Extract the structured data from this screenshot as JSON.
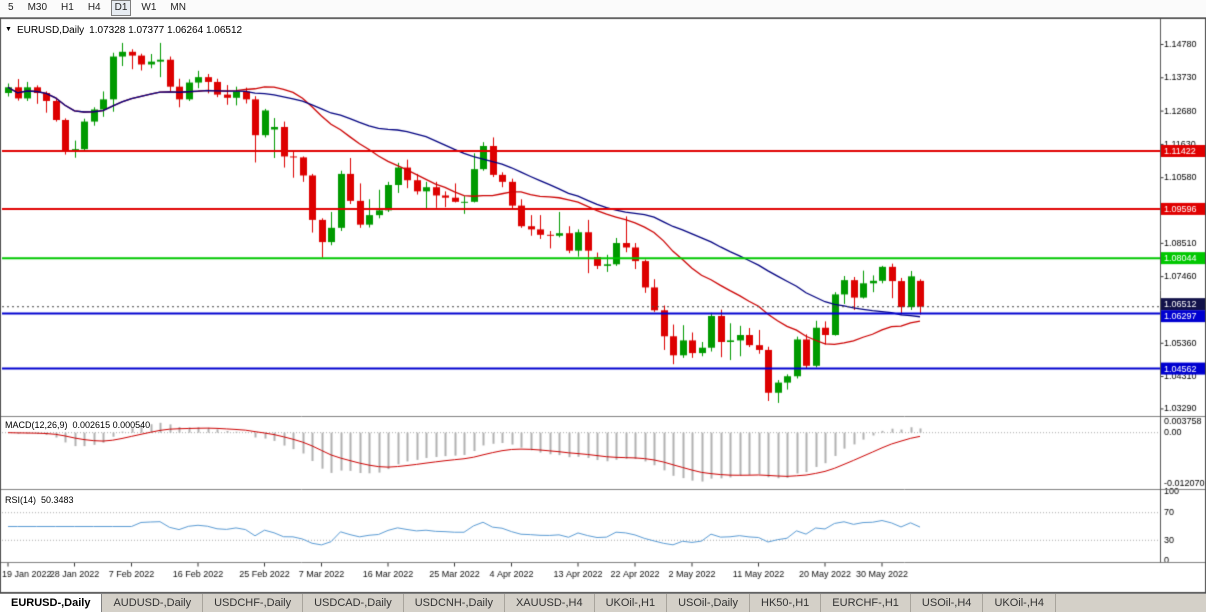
{
  "toolbar": {
    "timeframes": [
      {
        "label": "5",
        "active": false
      },
      {
        "label": "M30",
        "active": false
      },
      {
        "label": "H1",
        "active": false
      },
      {
        "label": "H4",
        "active": false
      },
      {
        "label": "D1",
        "active": true
      },
      {
        "label": "W1",
        "active": false
      },
      {
        "label": "MN",
        "active": false
      }
    ]
  },
  "chart": {
    "collapse_icon": "▼",
    "symbol_period": "EURUSD,Daily",
    "ohlc": "1.07328 1.07377 1.06264 1.06512"
  },
  "indicators": {
    "macd": {
      "label": "MACD(12,26,9)",
      "values": "0.002615 0.000540",
      "axis_labels": [
        "0.003758",
        "0.00",
        "-0.012070"
      ]
    },
    "rsi": {
      "label": "RSI(14)",
      "value": "50.3483",
      "axis_labels": [
        "100",
        "70",
        "30",
        "0"
      ],
      "levels": [
        70,
        30
      ]
    }
  },
  "chart_data": {
    "type": "candlestick",
    "title": "EURUSD,Daily",
    "price_axis": {
      "min": 1.0313,
      "max": 1.153,
      "ticks": [
        1.1478,
        1.1373,
        1.1268,
        1.1163,
        1.1058,
        1.0851,
        1.0746,
        1.0536,
        1.0431,
        1.0329
      ]
    },
    "date_ticks": [
      {
        "label": "19 Jan 2022",
        "i": 0
      },
      {
        "label": "28 Jan 2022",
        "i": 7
      },
      {
        "label": "7 Feb 2022",
        "i": 13
      },
      {
        "label": "16 Feb 2022",
        "i": 20
      },
      {
        "label": "25 Feb 2022",
        "i": 27
      },
      {
        "label": "7 Mar 2022",
        "i": 33
      },
      {
        "label": "16 Mar 2022",
        "i": 40
      },
      {
        "label": "25 Mar 2022",
        "i": 47
      },
      {
        "label": "4 Apr 2022",
        "i": 53
      },
      {
        "label": "13 Apr 2022",
        "i": 60
      },
      {
        "label": "22 Apr 2022",
        "i": 66
      },
      {
        "label": "2 May 2022",
        "i": 72
      },
      {
        "label": "11 May 2022",
        "i": 79
      },
      {
        "label": "20 May 2022",
        "i": 86
      },
      {
        "label": "30 May 2022",
        "i": 92
      }
    ],
    "hlines": [
      {
        "price": 1.11422,
        "label": "1.11422",
        "color": "#e00000"
      },
      {
        "price": 1.09596,
        "label": "1.09596",
        "color": "#e00000"
      },
      {
        "price": 1.08044,
        "label": "1.08044",
        "color": "#00c800"
      },
      {
        "price": 1.06297,
        "label": "1.06297",
        "color": "#0000d0"
      },
      {
        "price": 1.04562,
        "label": "1.04562",
        "color": "#0000d0"
      }
    ],
    "current_price": {
      "price": 1.06512,
      "label": "1.06512",
      "color": "#12124a"
    },
    "moving_averages": [
      {
        "name": "ma-fast",
        "period": 20,
        "color": "#cc0000"
      },
      {
        "name": "ma-slow",
        "period": 34,
        "color": "#000080"
      }
    ],
    "macd": {
      "fast": 12,
      "slow": 26,
      "signal": 9,
      "hist_color": "#b2b2b2",
      "signal_color": "#cc0000"
    },
    "rsi": {
      "period": 14,
      "color": "#5a9bd4"
    },
    "colors": {
      "up": "#009a00",
      "down": "#dd0000",
      "grid": "#aaaaaa",
      "axis_text": "#000000",
      "frame": "#4d4d4d",
      "bg": "#ffffff"
    },
    "candles": [
      [
        1.1325,
        1.1355,
        1.1314,
        1.1343
      ],
      [
        1.1343,
        1.1369,
        1.1301,
        1.1308
      ],
      [
        1.1308,
        1.136,
        1.13,
        1.1343
      ],
      [
        1.1343,
        1.1349,
        1.1291,
        1.1325
      ],
      [
        1.1325,
        1.133,
        1.1263,
        1.13
      ],
      [
        1.13,
        1.131,
        1.1235,
        1.124
      ],
      [
        1.124,
        1.1245,
        1.1131,
        1.1145
      ],
      [
        1.1145,
        1.1175,
        1.1121,
        1.1148
      ],
      [
        1.1148,
        1.1244,
        1.114,
        1.1235
      ],
      [
        1.1235,
        1.128,
        1.1222,
        1.1273
      ],
      [
        1.1273,
        1.133,
        1.125,
        1.1305
      ],
      [
        1.1305,
        1.1452,
        1.1266,
        1.144
      ],
      [
        1.144,
        1.1483,
        1.141,
        1.1455
      ],
      [
        1.1455,
        1.1463,
        1.14,
        1.1443
      ],
      [
        1.1443,
        1.1449,
        1.1396,
        1.1415
      ],
      [
        1.1415,
        1.1448,
        1.1403,
        1.1424
      ],
      [
        1.1424,
        1.1483,
        1.1375,
        1.143
      ],
      [
        1.143,
        1.144,
        1.133,
        1.1345
      ],
      [
        1.1345,
        1.137,
        1.128,
        1.1305
      ],
      [
        1.1305,
        1.1368,
        1.13,
        1.1358
      ],
      [
        1.1358,
        1.1395,
        1.134,
        1.1375
      ],
      [
        1.1375,
        1.1385,
        1.1324,
        1.136
      ],
      [
        1.136,
        1.137,
        1.1312,
        1.132
      ],
      [
        1.132,
        1.135,
        1.1288,
        1.131
      ],
      [
        1.131,
        1.1345,
        1.1286,
        1.133
      ],
      [
        1.133,
        1.1342,
        1.1292,
        1.1305
      ],
      [
        1.1305,
        1.1315,
        1.1106,
        1.1192
      ],
      [
        1.1192,
        1.1275,
        1.1185,
        1.127
      ],
      [
        1.121,
        1.1246,
        1.112,
        1.1218
      ],
      [
        1.1218,
        1.1235,
        1.109,
        1.1125
      ],
      [
        1.1125,
        1.114,
        1.1058,
        1.1122
      ],
      [
        1.1122,
        1.1125,
        1.1045,
        1.1065
      ],
      [
        1.1065,
        1.107,
        1.0885,
        1.0925
      ],
      [
        1.0925,
        1.093,
        1.0806,
        1.0855
      ],
      [
        1.0855,
        1.095,
        1.0845,
        1.09
      ],
      [
        1.09,
        1.108,
        1.089,
        1.107
      ],
      [
        1.107,
        1.112,
        1.0975,
        1.0985
      ],
      [
        1.0985,
        1.104,
        1.09,
        1.091
      ],
      [
        1.091,
        1.099,
        1.0901,
        1.094
      ],
      [
        1.094,
        1.102,
        1.093,
        1.0955
      ],
      [
        1.0955,
        1.1045,
        1.095,
        1.1035
      ],
      [
        1.1035,
        1.1105,
        1.101,
        1.109
      ],
      [
        1.109,
        1.1115,
        1.1025,
        1.105
      ],
      [
        1.105,
        1.107,
        1.1005,
        1.1015
      ],
      [
        1.1015,
        1.1045,
        1.096,
        1.1028
      ],
      [
        1.1028,
        1.1045,
        1.0963,
        1.1002
      ],
      [
        1.1002,
        1.1015,
        1.0965,
        1.0995
      ],
      [
        1.0995,
        1.104,
        1.098,
        1.0982
      ],
      [
        1.0982,
        1.1,
        1.0944,
        1.0982
      ],
      [
        1.0982,
        1.1135,
        1.098,
        1.1085
      ],
      [
        1.1085,
        1.117,
        1.108,
        1.1158
      ],
      [
        1.1158,
        1.1185,
        1.106,
        1.1067
      ],
      [
        1.1067,
        1.1075,
        1.1028,
        1.1045
      ],
      [
        1.1045,
        1.1055,
        1.096,
        1.097
      ],
      [
        1.097,
        1.099,
        1.09,
        1.0905
      ],
      [
        1.0905,
        1.094,
        1.0875,
        1.0895
      ],
      [
        1.0895,
        1.094,
        1.0865,
        1.0878
      ],
      [
        1.0878,
        1.089,
        1.0835,
        1.0875
      ],
      [
        1.0875,
        1.095,
        1.087,
        1.0883
      ],
      [
        1.0883,
        1.0905,
        1.082,
        1.0828
      ],
      [
        1.0828,
        1.0895,
        1.0809,
        1.0886
      ],
      [
        1.0886,
        1.0925,
        1.0757,
        1.0828
      ],
      [
        1.0808,
        1.0822,
        1.077,
        1.078
      ],
      [
        1.078,
        1.0815,
        1.0761,
        1.0785
      ],
      [
        1.0785,
        1.0868,
        1.078,
        1.0852
      ],
      [
        1.0852,
        1.0936,
        1.0823,
        1.0838
      ],
      [
        1.0838,
        1.0852,
        1.077,
        1.0795
      ],
      [
        1.0795,
        1.08,
        1.0695,
        1.0712
      ],
      [
        1.0712,
        1.0738,
        1.0635,
        1.064
      ],
      [
        1.064,
        1.0655,
        1.0515,
        1.0558
      ],
      [
        1.0558,
        1.0595,
        1.047,
        1.0498
      ],
      [
        1.0498,
        1.0593,
        1.049,
        1.0545
      ],
      [
        1.0545,
        1.057,
        1.049,
        1.0505
      ],
      [
        1.0505,
        1.054,
        1.0495,
        1.0522
      ],
      [
        1.0522,
        1.0632,
        1.051,
        1.0622
      ],
      [
        1.0622,
        1.0642,
        1.0492,
        1.054
      ],
      [
        1.054,
        1.0599,
        1.0483,
        1.0545
      ],
      [
        1.0545,
        1.0591,
        1.0495,
        1.0562
      ],
      [
        1.0562,
        1.0584,
        1.0524,
        1.053
      ],
      [
        1.053,
        1.0578,
        1.0503,
        1.0515
      ],
      [
        1.0515,
        1.0525,
        1.0354,
        1.038
      ],
      [
        1.038,
        1.042,
        1.0348,
        1.0412
      ],
      [
        1.0412,
        1.0438,
        1.039,
        1.0432
      ],
      [
        1.0432,
        1.0557,
        1.0425,
        1.0548
      ],
      [
        1.0548,
        1.0564,
        1.0458,
        1.0465
      ],
      [
        1.0465,
        1.0607,
        1.046,
        1.0585
      ],
      [
        1.0585,
        1.0605,
        1.0532,
        1.0562
      ],
      [
        1.0562,
        1.0697,
        1.056,
        1.069
      ],
      [
        1.069,
        1.0748,
        1.066,
        1.0735
      ],
      [
        1.0735,
        1.0745,
        1.0641,
        1.068
      ],
      [
        1.068,
        1.0765,
        1.0677,
        1.0725
      ],
      [
        1.0725,
        1.075,
        1.0697,
        1.0733
      ],
      [
        1.0733,
        1.078,
        1.0725,
        1.0777
      ],
      [
        1.0777,
        1.0787,
        1.0678,
        1.0732
      ],
      [
        1.0732,
        1.0742,
        1.0626,
        1.065
      ],
      [
        1.065,
        1.0764,
        1.0641,
        1.0747
      ],
      [
        1.07328,
        1.07377,
        1.06264,
        1.06512
      ]
    ]
  },
  "tabs": [
    {
      "label": "EURUSD-,Daily",
      "active": true
    },
    {
      "label": "AUDUSD-,Daily",
      "active": false
    },
    {
      "label": "USDCHF-,Daily",
      "active": false
    },
    {
      "label": "USDCAD-,Daily",
      "active": false
    },
    {
      "label": "USDCNH-,Daily",
      "active": false
    },
    {
      "label": "XAUUSD-,H4",
      "active": false
    },
    {
      "label": "UKOil-,H1",
      "active": false
    },
    {
      "label": "USOil-,Daily",
      "active": false
    },
    {
      "label": "HK50-,H1",
      "active": false
    },
    {
      "label": "EURCHF-,H1",
      "active": false
    },
    {
      "label": "USOil-,H4",
      "active": false
    },
    {
      "label": "UKOil-,H4",
      "active": false
    }
  ]
}
